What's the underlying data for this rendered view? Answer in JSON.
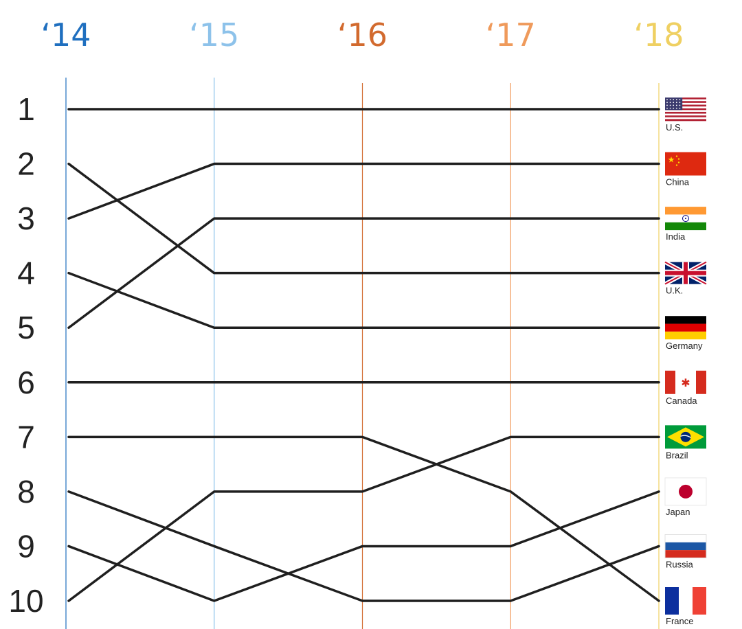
{
  "chart_data": {
    "type": "line",
    "x": [
      "'14",
      "'15",
      "'16",
      "'17",
      "'18"
    ],
    "x_label_display": [
      "‘14",
      "‘15",
      "‘16",
      "‘17",
      "‘18"
    ],
    "year_colors": [
      "#1f6fbf",
      "#8dc2ea",
      "#d26a2e",
      "#ef9a5b",
      "#efd062"
    ],
    "y_ticks": [
      1,
      2,
      3,
      4,
      5,
      6,
      7,
      8,
      9,
      10
    ],
    "ylim": [
      1,
      10
    ],
    "y_inverted": true,
    "series": [
      {
        "name": "U.S.",
        "flag": "us-flag",
        "values": [
          1,
          1,
          1,
          1,
          1
        ]
      },
      {
        "name": "China",
        "flag": "china-flag",
        "values": [
          3,
          2,
          2,
          2,
          2
        ]
      },
      {
        "name": "India",
        "flag": "india-flag",
        "values": [
          5,
          3,
          3,
          3,
          3
        ]
      },
      {
        "name": "U.K.",
        "flag": "uk-flag",
        "values": [
          2,
          4,
          4,
          4,
          4
        ]
      },
      {
        "name": "Germany",
        "flag": "germany-flag",
        "values": [
          4,
          5,
          5,
          5,
          5
        ]
      },
      {
        "name": "Canada",
        "flag": "canada-flag",
        "values": [
          6,
          6,
          6,
          6,
          6
        ]
      },
      {
        "name": "Brazil",
        "flag": "brazil-flag",
        "values": [
          10,
          8,
          8,
          7,
          7
        ]
      },
      {
        "name": "Japan",
        "flag": "japan-flag",
        "values": [
          9,
          10,
          9,
          9,
          8
        ]
      },
      {
        "name": "Russia",
        "flag": "russia-flag",
        "values": [
          8,
          9,
          10,
          10,
          9
        ]
      },
      {
        "name": "France",
        "flag": "france-flag",
        "values": [
          7,
          7,
          7,
          8,
          10
        ]
      }
    ],
    "legend_position": "right",
    "grid": false
  }
}
